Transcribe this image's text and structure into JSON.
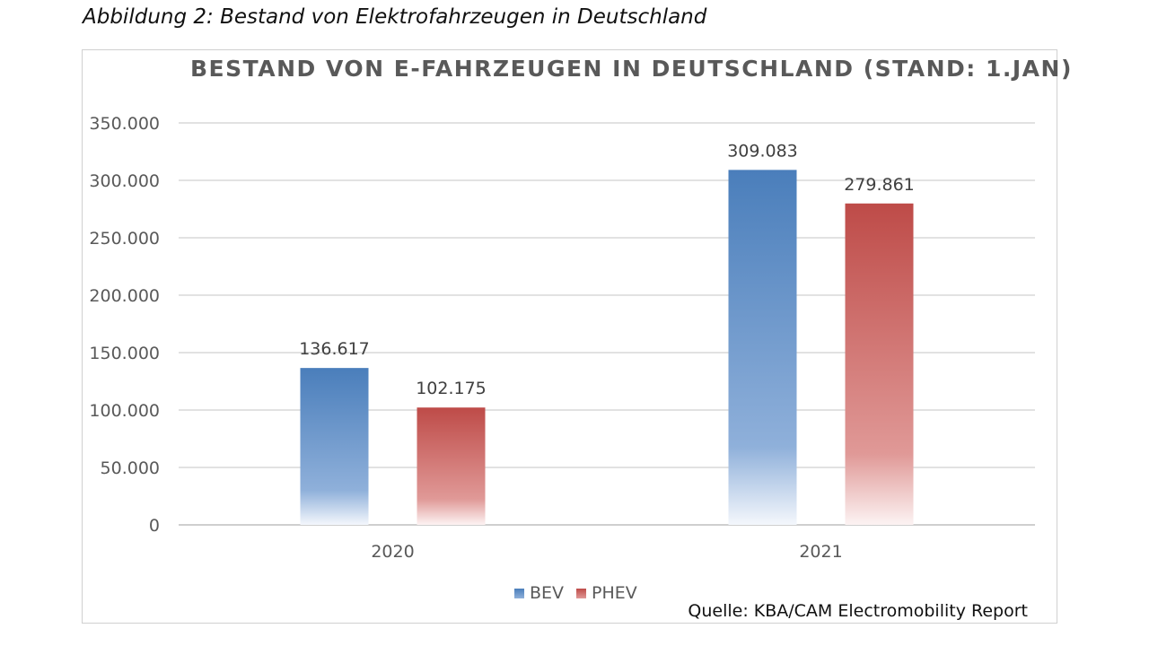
{
  "caption": "Abbildung 2: Bestand von Elektrofahrzeugen in Deutschland",
  "source": "Quelle: KBA/CAM Electromobility Report",
  "colors": {
    "bev": "#4a7ebb",
    "phev": "#be4b48",
    "grid": "#d9d9d9",
    "axis": "#bfbfbf"
  },
  "chart_data": {
    "type": "bar",
    "title": "BESTAND VON E-FAHRZEUGEN IN DEUTSCHLAND (STAND: 1.JAN)",
    "categories": [
      "2020",
      "2021"
    ],
    "series": [
      {
        "name": "BEV",
        "values": [
          136617,
          309083
        ],
        "labels": [
          "136.617",
          "309.083"
        ]
      },
      {
        "name": "PHEV",
        "values": [
          102175,
          279861
        ],
        "labels": [
          "102.175",
          "279.861"
        ]
      }
    ],
    "yticks": [
      "0",
      "50.000",
      "100.000",
      "150.000",
      "200.000",
      "250.000",
      "300.000",
      "350.000"
    ],
    "ylim": [
      0,
      350000
    ],
    "ystep": 50000,
    "grid": true,
    "legend_position": "bottom",
    "xlabel": "",
    "ylabel": ""
  }
}
